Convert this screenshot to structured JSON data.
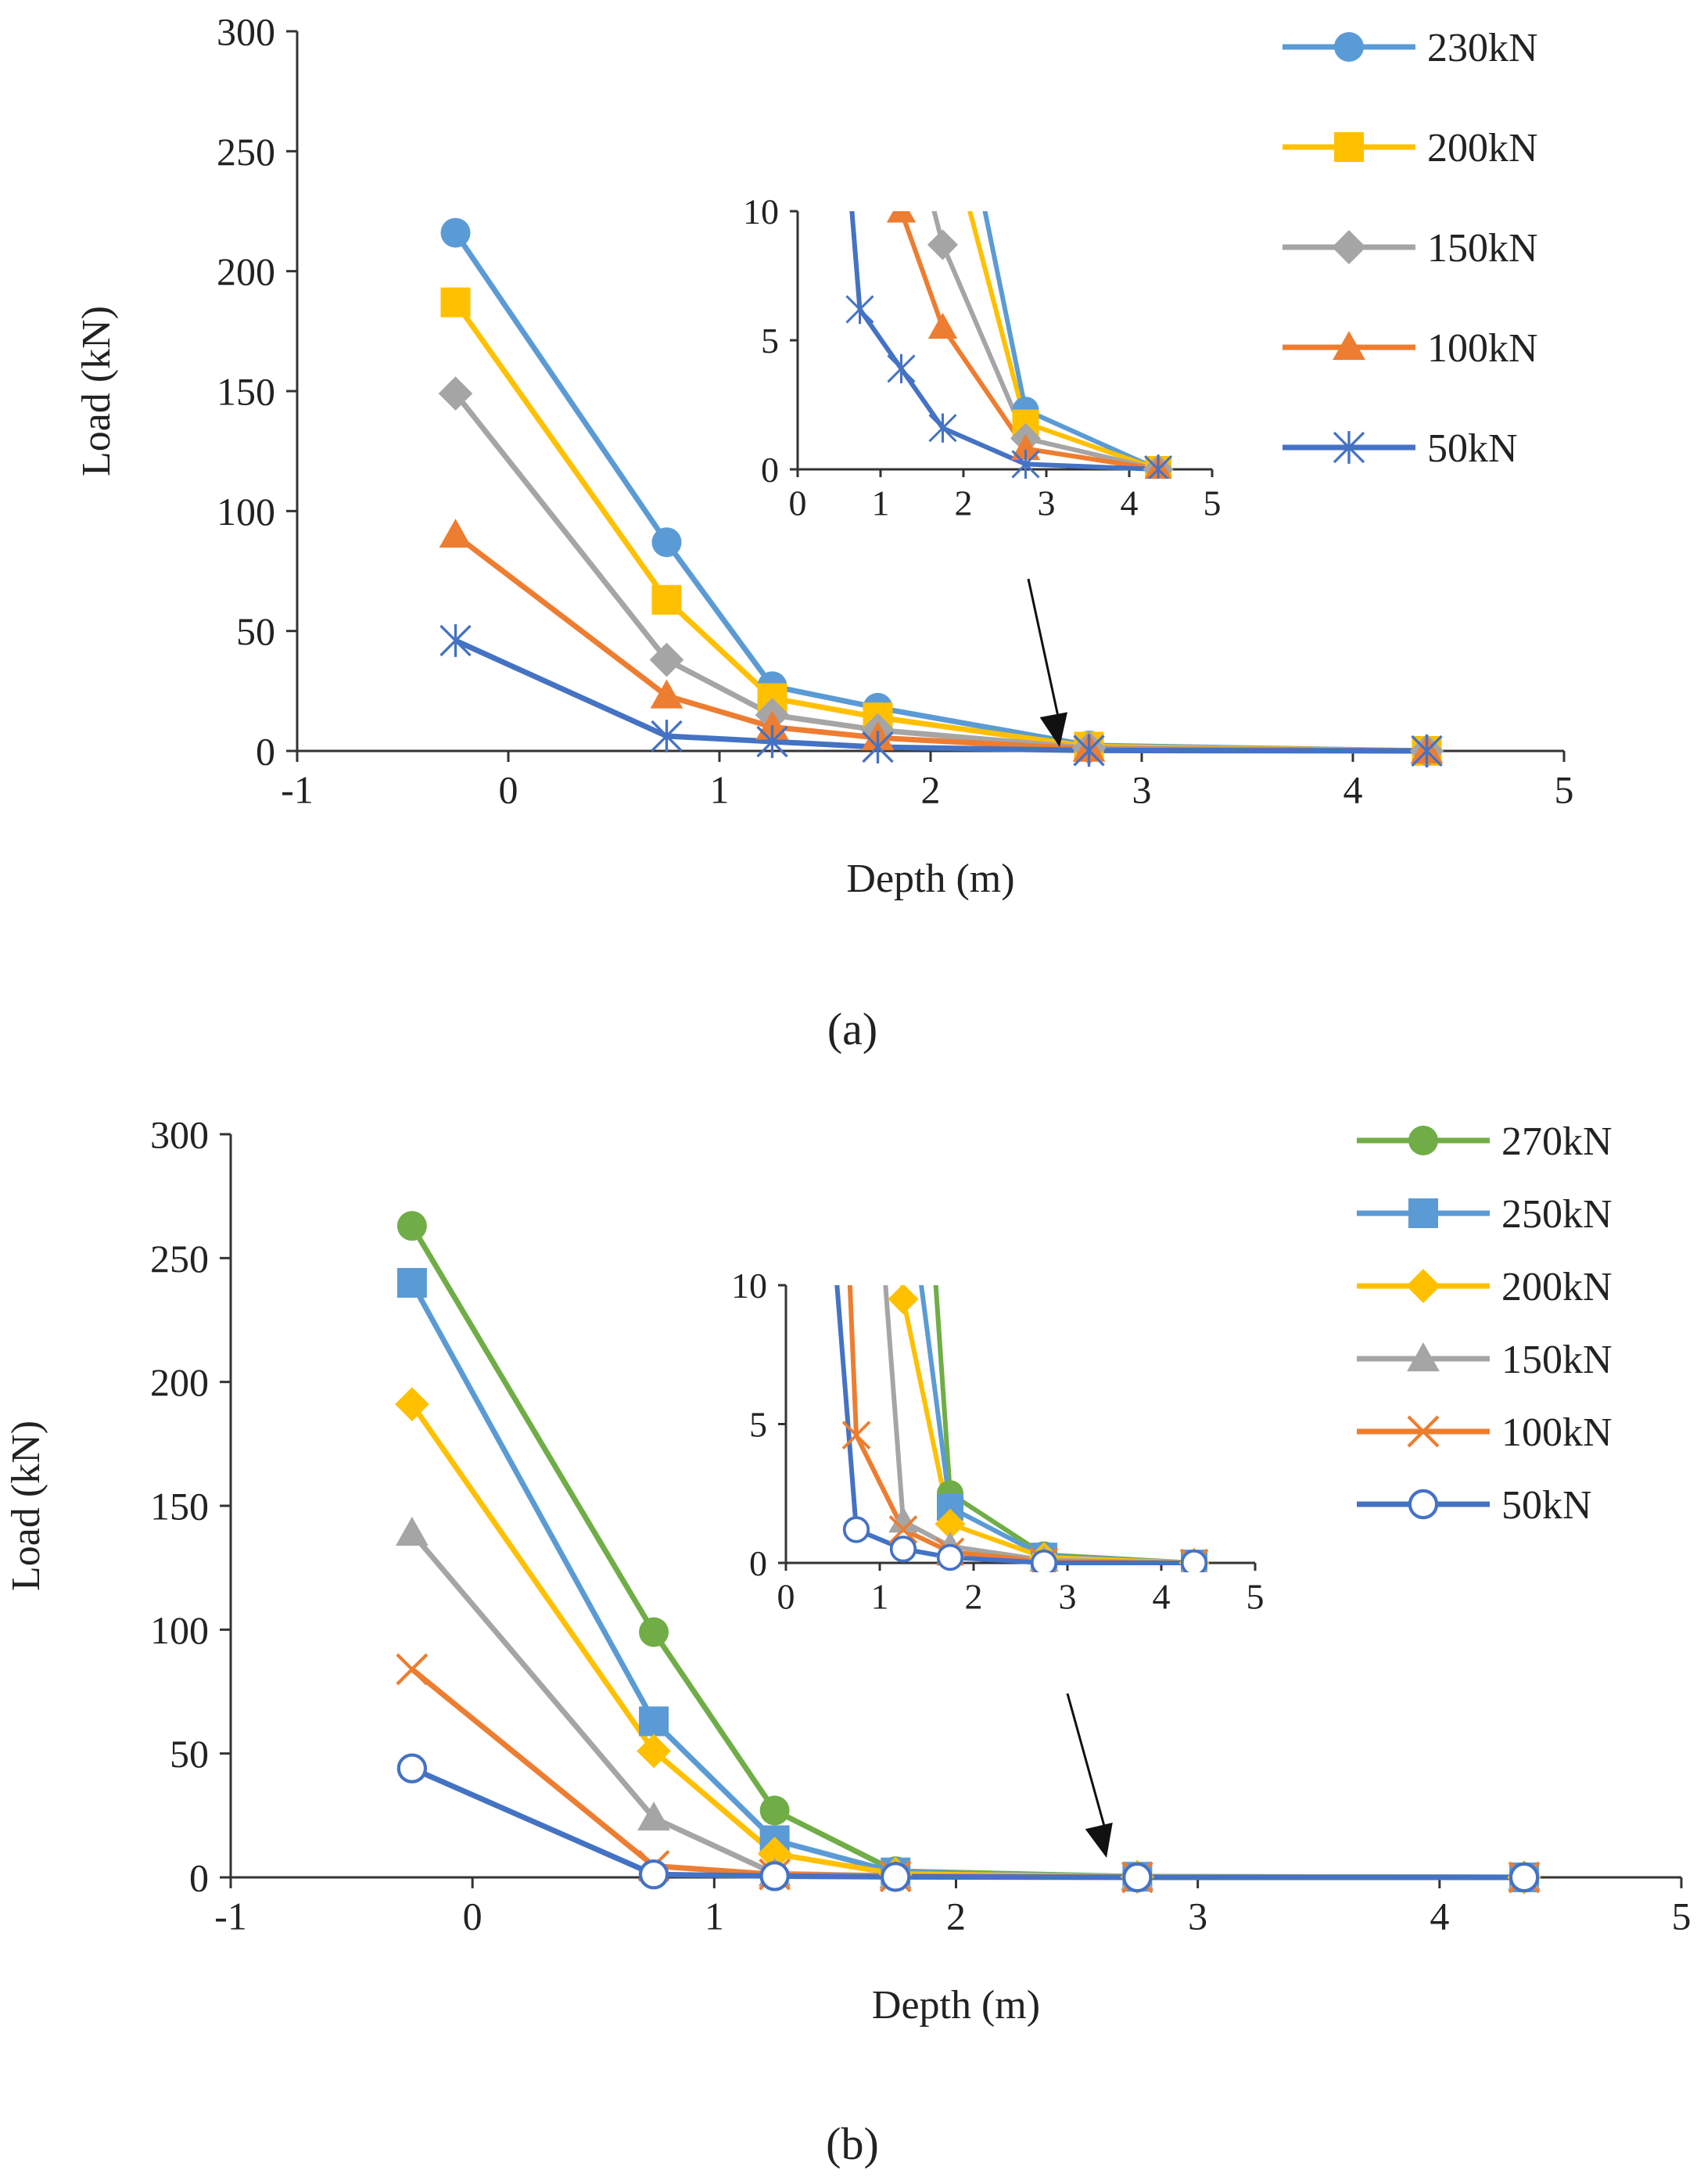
{
  "figure": {
    "panel_labels": [
      "(a)",
      "(b)"
    ]
  },
  "chart_data": [
    {
      "type": "line",
      "panel": "(a)",
      "xlabel": "Depth (m)",
      "ylabel": "Load (kN)",
      "xlim": [
        -1,
        5
      ],
      "ylim": [
        0,
        300
      ],
      "xticks": [
        -1,
        0,
        1,
        2,
        3,
        4,
        5
      ],
      "yticks": [
        0,
        50,
        100,
        150,
        200,
        250,
        300
      ],
      "legend_position": "top-right",
      "grid": false,
      "x": [
        -0.25,
        0.75,
        1.25,
        1.75,
        2.75,
        4.35
      ],
      "series": [
        {
          "name": "230kN",
          "color": "#5B9BD5",
          "marker": "circle",
          "values": [
            216,
            87,
            27,
            18,
            2.3,
            0
          ]
        },
        {
          "name": "200kN",
          "color": "#FFC000",
          "marker": "square",
          "values": [
            187,
            63,
            22,
            14,
            1.8,
            0
          ]
        },
        {
          "name": "150kN",
          "color": "#A5A5A5",
          "marker": "diamond",
          "values": [
            149,
            38,
            15,
            8.7,
            1.2,
            0
          ]
        },
        {
          "name": "100kN",
          "color": "#ED7D31",
          "marker": "triangle",
          "values": [
            90,
            23,
            10,
            5.5,
            0.8,
            0
          ]
        },
        {
          "name": "50kN",
          "color": "#4472C4",
          "marker": "star",
          "values": [
            46,
            6.2,
            3.9,
            1.6,
            0.2,
            0
          ]
        }
      ],
      "inset": {
        "xlim": [
          0,
          5
        ],
        "ylim": [
          0,
          10
        ],
        "xticks": [
          0,
          1,
          2,
          3,
          4,
          5
        ],
        "yticks": [
          0,
          5,
          10
        ]
      }
    },
    {
      "type": "line",
      "panel": "(b)",
      "xlabel": "Depth (m)",
      "ylabel": "Load (kN)",
      "xlim": [
        -1,
        5
      ],
      "ylim": [
        0,
        300
      ],
      "xticks": [
        -1,
        0,
        1,
        2,
        3,
        4,
        5
      ],
      "yticks": [
        0,
        50,
        100,
        150,
        200,
        250,
        300
      ],
      "legend_position": "top-right",
      "grid": false,
      "x": [
        -0.25,
        0.75,
        1.25,
        1.75,
        2.75,
        4.35
      ],
      "series": [
        {
          "name": "270kN",
          "color": "#70AD47",
          "marker": "circle",
          "values": [
            263,
            99,
            27,
            2.5,
            0.3,
            0
          ]
        },
        {
          "name": "250kN",
          "color": "#5B9BD5",
          "marker": "square",
          "values": [
            240,
            63,
            15,
            2.0,
            0.25,
            0
          ]
        },
        {
          "name": "200kN",
          "color": "#FFC000",
          "marker": "diamond",
          "values": [
            191,
            51,
            9.5,
            1.4,
            0.2,
            0
          ]
        },
        {
          "name": "150kN",
          "color": "#A5A5A5",
          "marker": "triangle",
          "values": [
            139,
            24,
            1.5,
            0.6,
            0.1,
            0
          ]
        },
        {
          "name": "100kN",
          "color": "#ED7D31",
          "marker": "x",
          "values": [
            84,
            4.6,
            1.2,
            0.4,
            0.05,
            0
          ]
        },
        {
          "name": "50kN",
          "color": "#4472C4",
          "marker": "circle-open",
          "values": [
            44,
            1.2,
            0.5,
            0.2,
            0,
            0
          ]
        }
      ],
      "inset": {
        "xlim": [
          0,
          5
        ],
        "ylim": [
          0,
          10
        ],
        "xticks": [
          0,
          1,
          2,
          3,
          4,
          5
        ],
        "yticks": [
          0,
          5,
          10
        ]
      }
    }
  ]
}
